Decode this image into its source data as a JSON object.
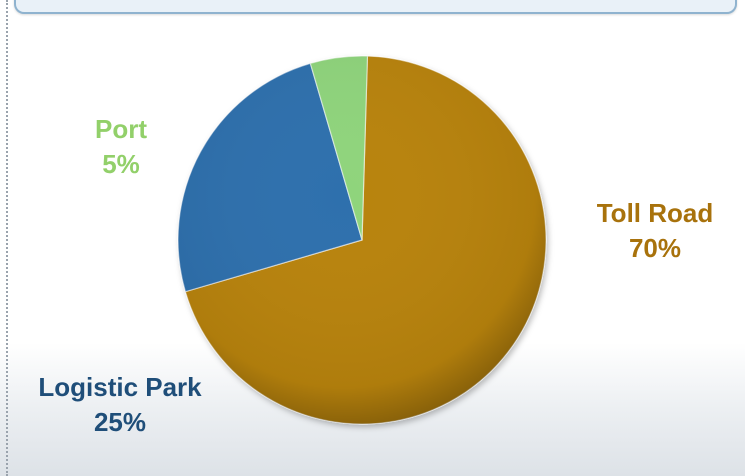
{
  "chart_data": {
    "type": "pie",
    "title": "",
    "categories": [
      "Toll Road",
      "Logistic Park",
      "Port"
    ],
    "values": [
      70,
      25,
      5
    ],
    "data_labels": [
      "70%",
      "25%",
      "5%"
    ],
    "colors": {
      "Toll Road": "#b8830c",
      "Logistic Park": "#2f6fad",
      "Port": "#8fd47c"
    },
    "label_colors": {
      "Toll Road": "#a8720c",
      "Logistic Park": "#1f4e79",
      "Port": "#92d06a"
    },
    "legend": "none"
  }
}
